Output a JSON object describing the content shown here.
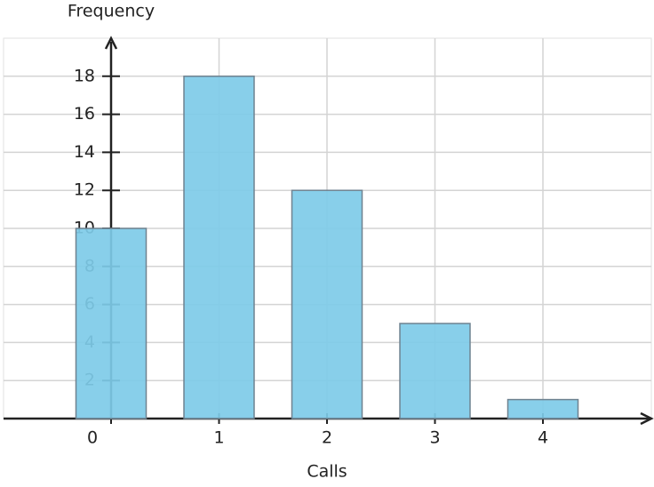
{
  "chart_data": {
    "type": "bar",
    "xlabel": "Calls",
    "ylabel": "Frequency",
    "categories": [
      "0",
      "1",
      "2",
      "3",
      "4"
    ],
    "values": [
      10,
      18,
      12,
      5,
      1
    ],
    "color": "#7ecbe8",
    "ylim": [
      0,
      20
    ],
    "yticks": [
      2,
      4,
      6,
      8,
      10,
      12,
      14,
      16,
      18
    ],
    "grid": true
  }
}
